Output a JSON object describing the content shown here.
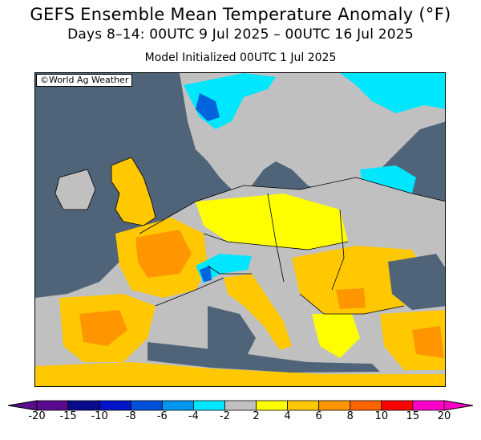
{
  "header": {
    "title": "GEFS Ensemble Mean Temperature Anomaly (°F)",
    "subtitle": "Days 8–14: 00UTC 9 Jul 2025 – 00UTC 16 Jul 2025",
    "init": "Model Initialized 00UTC 1 Jul 2025"
  },
  "map": {
    "credit": "©World Ag Weather",
    "region": "Europe",
    "colors": {
      "sea": "#4f6478",
      "neutral": "#c0c0c0",
      "yellow": "#ffff00",
      "gold": "#ffc800",
      "orange": "#ff9600",
      "cyan": "#00e6ff",
      "blue": "#0064dc",
      "darkblue": "#0000c8",
      "borders": "#000000"
    }
  },
  "legend": {
    "ticks": [
      "-20",
      "-15",
      "-10",
      "-8",
      "-6",
      "-4",
      "-2",
      "2",
      "4",
      "6",
      "8",
      "10",
      "15",
      "20"
    ],
    "colors": [
      "#5a0a8c",
      "#0a0a8c",
      "#0014c8",
      "#0050dc",
      "#0096f0",
      "#00e6ff",
      "#c0c0c0",
      "#ffff00",
      "#ffc800",
      "#ff9600",
      "#ff6400",
      "#ff0000",
      "#ff00c8"
    ]
  }
}
